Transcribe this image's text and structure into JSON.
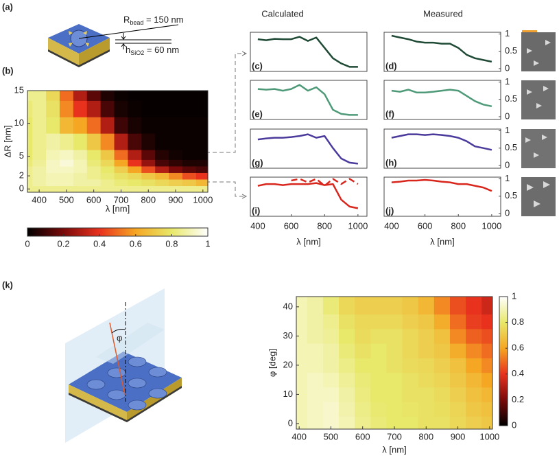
{
  "figure": {
    "panel_a": {
      "label": "(a)",
      "r_bead": {
        "symbol": "R",
        "sub": "bead",
        "text": " = 150 nm"
      },
      "h": {
        "symbol": "h",
        "sub": "SiO2",
        "text": " = 60 nm"
      }
    },
    "column_titles": [
      "Calculated",
      "Measured"
    ],
    "panel_k": {
      "label": "(k)",
      "angle": "φ"
    }
  },
  "chart_data": [
    {
      "type": "heatmap",
      "panel_label": "(b)",
      "xlabel": "λ [nm]",
      "ylabel": "ΔR [nm]",
      "xlim": [
        357,
        1018
      ],
      "ylim": [
        -0.5,
        15
      ],
      "xticks": [
        400,
        500,
        600,
        700,
        800,
        900,
        1000
      ],
      "yticks": [
        0,
        2,
        5,
        10,
        15
      ],
      "x": [
        350,
        400,
        450,
        500,
        550,
        600,
        650,
        700,
        750,
        800,
        850,
        900,
        950,
        1000
      ],
      "y": [
        0,
        1,
        2,
        3,
        4,
        5,
        7,
        10,
        12,
        15
      ],
      "z": [
        [
          0.85,
          0.85,
          0.85,
          0.85,
          0.85,
          0.85,
          0.85,
          0.85,
          0.85,
          0.85,
          0.85,
          0.85,
          0.85,
          0.85
        ],
        [
          0.85,
          0.88,
          0.9,
          0.9,
          0.88,
          0.88,
          0.85,
          0.82,
          0.8,
          0.78,
          0.75,
          0.72,
          0.7,
          0.65
        ],
        [
          0.85,
          0.88,
          0.9,
          0.9,
          0.88,
          0.85,
          0.82,
          0.78,
          0.75,
          0.7,
          0.65,
          0.55,
          0.45,
          0.4
        ],
        [
          0.85,
          0.88,
          0.92,
          0.92,
          0.9,
          0.85,
          0.8,
          0.72,
          0.6,
          0.45,
          0.3,
          0.2,
          0.15,
          0.12
        ],
        [
          0.82,
          0.86,
          0.92,
          0.95,
          0.9,
          0.82,
          0.75,
          0.6,
          0.4,
          0.25,
          0.12,
          0.08,
          0.05,
          0.05
        ],
        [
          0.8,
          0.85,
          0.9,
          0.92,
          0.88,
          0.8,
          0.7,
          0.5,
          0.3,
          0.15,
          0.06,
          0.03,
          0.02,
          0.02
        ],
        [
          0.8,
          0.85,
          0.88,
          0.85,
          0.8,
          0.7,
          0.55,
          0.3,
          0.12,
          0.05,
          0.02,
          0.02,
          0.02,
          0.02
        ],
        [
          0.8,
          0.85,
          0.8,
          0.65,
          0.6,
          0.5,
          0.3,
          0.1,
          0.04,
          0.02,
          0.02,
          0.02,
          0.02,
          0.02
        ],
        [
          0.82,
          0.85,
          0.78,
          0.55,
          0.4,
          0.3,
          0.12,
          0.04,
          0.02,
          0.01,
          0.01,
          0.01,
          0.01,
          0.01
        ],
        [
          0.85,
          0.85,
          0.75,
          0.5,
          0.3,
          0.15,
          0.05,
          0.02,
          0.01,
          0.01,
          0.01,
          0.01,
          0.01,
          0.01
        ]
      ],
      "colormap": [
        [
          0,
          "#000000"
        ],
        [
          0.2,
          "#7a0a0a"
        ],
        [
          0.4,
          "#e8321e"
        ],
        [
          0.6,
          "#f5a623"
        ],
        [
          0.8,
          "#e8e86a"
        ],
        [
          1,
          "#ffffff"
        ]
      ],
      "clim": [
        0,
        1
      ],
      "cticks": [
        0,
        0.2,
        0.4,
        0.6,
        0.8,
        1
      ],
      "colorbar": "bottom"
    },
    {
      "type": "line",
      "panel_label": "(c)",
      "x": [
        400,
        450,
        500,
        550,
        600,
        650,
        700,
        750,
        800,
        850,
        900,
        950,
        1000
      ],
      "xlim": [
        355,
        1054
      ],
      "ylim": [
        -0.08,
        1.05
      ],
      "series": [
        {
          "color": "#1f4a35",
          "values": [
            0.85,
            0.82,
            0.86,
            0.85,
            0.85,
            0.92,
            0.8,
            0.9,
            0.6,
            0.3,
            0.15,
            0.05,
            0.05
          ]
        }
      ]
    },
    {
      "type": "line",
      "panel_label": "(d)",
      "x": [
        400,
        450,
        500,
        550,
        600,
        650,
        700,
        750,
        800,
        850,
        900,
        950,
        1000
      ],
      "xlim": [
        355,
        1054
      ],
      "ylim": [
        -0.08,
        1.05
      ],
      "yticks": [
        0,
        0.5,
        1
      ],
      "series": [
        {
          "color": "#1f4a35",
          "values": [
            0.95,
            0.9,
            0.85,
            0.78,
            0.75,
            0.75,
            0.72,
            0.72,
            0.6,
            0.4,
            0.3,
            0.25,
            0.2
          ]
        }
      ]
    },
    {
      "type": "line",
      "panel_label": "(e)",
      "x": [
        400,
        450,
        500,
        550,
        600,
        650,
        700,
        750,
        800,
        850,
        900,
        950,
        1000
      ],
      "xlim": [
        355,
        1054
      ],
      "ylim": [
        -0.08,
        1.05
      ],
      "series": [
        {
          "color": "#4e9a78",
          "values": [
            0.8,
            0.78,
            0.8,
            0.75,
            0.8,
            0.92,
            0.75,
            0.85,
            0.65,
            0.2,
            0.08,
            0.05,
            0.05
          ]
        }
      ]
    },
    {
      "type": "line",
      "panel_label": "(f)",
      "x": [
        400,
        450,
        500,
        550,
        600,
        650,
        700,
        750,
        800,
        850,
        900,
        950,
        1000
      ],
      "xlim": [
        355,
        1054
      ],
      "ylim": [
        -0.08,
        1.05
      ],
      "yticks": [
        0,
        0.5,
        1
      ],
      "series": [
        {
          "color": "#4e9a78",
          "values": [
            0.75,
            0.72,
            0.78,
            0.7,
            0.7,
            0.72,
            0.75,
            0.78,
            0.75,
            0.6,
            0.45,
            0.35,
            0.3
          ]
        }
      ]
    },
    {
      "type": "line",
      "panel_label": "(g)",
      "x": [
        400,
        450,
        500,
        550,
        600,
        650,
        700,
        750,
        800,
        850,
        900,
        950,
        1000
      ],
      "xlim": [
        355,
        1054
      ],
      "ylim": [
        -0.08,
        1.05
      ],
      "series": [
        {
          "color": "#4b3a9c",
          "values": [
            0.75,
            0.78,
            0.8,
            0.8,
            0.82,
            0.85,
            0.9,
            0.8,
            0.85,
            0.5,
            0.2,
            0.08,
            0.05
          ]
        }
      ]
    },
    {
      "type": "line",
      "panel_label": "(h)",
      "x": [
        400,
        450,
        500,
        550,
        600,
        650,
        700,
        750,
        800,
        850,
        900,
        950,
        1000
      ],
      "xlim": [
        355,
        1054
      ],
      "ylim": [
        -0.08,
        1.05
      ],
      "yticks": [
        0,
        0.5,
        1
      ],
      "series": [
        {
          "color": "#4b3a9c",
          "values": [
            0.8,
            0.85,
            0.9,
            0.9,
            0.88,
            0.9,
            0.88,
            0.85,
            0.8,
            0.7,
            0.55,
            0.5,
            0.45
          ]
        }
      ]
    },
    {
      "type": "line",
      "panel_label": "(i)",
      "x": [
        400,
        450,
        500,
        550,
        600,
        650,
        700,
        750,
        800,
        850,
        900,
        950,
        1000
      ],
      "xlim": [
        355,
        1054
      ],
      "ylim": [
        -0.08,
        1.05
      ],
      "xticks": [
        400,
        600,
        800,
        1000
      ],
      "xlabel": "λ [nm]",
      "series": [
        {
          "color": "#d9261c",
          "values": [
            0.8,
            0.85,
            0.85,
            0.82,
            0.85,
            0.85,
            0.85,
            0.88,
            0.82,
            0.85,
            0.4,
            0.2,
            0.15
          ]
        },
        {
          "color": "#d9261c",
          "dashed": true,
          "values": [
            null,
            null,
            null,
            null,
            0.95,
            1.0,
            0.9,
            1.0,
            0.8,
            1.0,
            0.85,
            1.0,
            0.85
          ]
        }
      ]
    },
    {
      "type": "line",
      "panel_label": "(j)",
      "x": [
        400,
        450,
        500,
        550,
        600,
        650,
        700,
        750,
        800,
        850,
        900,
        950,
        1000
      ],
      "xlim": [
        355,
        1054
      ],
      "ylim": [
        -0.08,
        1.05
      ],
      "yticks": [
        0,
        0.5,
        1
      ],
      "xticks": [
        400,
        600,
        800,
        1000
      ],
      "xlabel": "λ [nm]",
      "series": [
        {
          "color": "#d9261c",
          "values": [
            0.9,
            0.92,
            0.95,
            0.95,
            0.97,
            0.95,
            0.92,
            0.9,
            0.85,
            0.85,
            0.8,
            0.75,
            0.65
          ]
        }
      ]
    },
    {
      "type": "heatmap",
      "xlabel": "λ [nm]",
      "ylabel": "φ [deg]",
      "xlim": [
        391,
        1009
      ],
      "ylim": [
        -1.9,
        43.5
      ],
      "xticks": [
        400,
        500,
        600,
        700,
        800,
        900,
        1000
      ],
      "yticks": [
        0,
        10,
        20,
        30,
        40
      ],
      "x": [
        400,
        450,
        500,
        550,
        600,
        650,
        700,
        750,
        800,
        850,
        900,
        950,
        1000
      ],
      "y": [
        0,
        5,
        10,
        15,
        20,
        25,
        30,
        35,
        40
      ],
      "z": [
        [
          0.9,
          0.92,
          0.93,
          0.9,
          0.85,
          0.82,
          0.8,
          0.8,
          0.78,
          0.78,
          0.75,
          0.72,
          0.7
        ],
        [
          0.9,
          0.92,
          0.93,
          0.89,
          0.84,
          0.81,
          0.8,
          0.79,
          0.78,
          0.77,
          0.74,
          0.7,
          0.68
        ],
        [
          0.9,
          0.92,
          0.92,
          0.88,
          0.83,
          0.8,
          0.8,
          0.78,
          0.78,
          0.76,
          0.72,
          0.68,
          0.65
        ],
        [
          0.9,
          0.92,
          0.9,
          0.86,
          0.82,
          0.8,
          0.8,
          0.78,
          0.76,
          0.74,
          0.7,
          0.65,
          0.6
        ],
        [
          0.9,
          0.9,
          0.88,
          0.84,
          0.8,
          0.8,
          0.78,
          0.76,
          0.75,
          0.72,
          0.68,
          0.6,
          0.55
        ],
        [
          0.9,
          0.9,
          0.88,
          0.82,
          0.78,
          0.8,
          0.78,
          0.75,
          0.72,
          0.7,
          0.62,
          0.55,
          0.5
        ],
        [
          0.9,
          0.88,
          0.86,
          0.8,
          0.76,
          0.78,
          0.78,
          0.75,
          0.72,
          0.68,
          0.55,
          0.48,
          0.45
        ],
        [
          0.9,
          0.88,
          0.85,
          0.78,
          0.75,
          0.75,
          0.75,
          0.72,
          0.7,
          0.62,
          0.5,
          0.42,
          0.4
        ],
        [
          0.9,
          0.88,
          0.82,
          0.75,
          0.72,
          0.72,
          0.72,
          0.7,
          0.65,
          0.55,
          0.45,
          0.4,
          0.35
        ]
      ],
      "colormap": [
        [
          0,
          "#000000"
        ],
        [
          0.2,
          "#7a0a0a"
        ],
        [
          0.4,
          "#e8321e"
        ],
        [
          0.6,
          "#f5a623"
        ],
        [
          0.8,
          "#e8e86a"
        ],
        [
          1,
          "#ffffff"
        ]
      ],
      "clim": [
        0,
        1
      ],
      "cticks": [
        0,
        0.2,
        0.4,
        0.6,
        0.8,
        1
      ],
      "colorbar": "right"
    }
  ]
}
